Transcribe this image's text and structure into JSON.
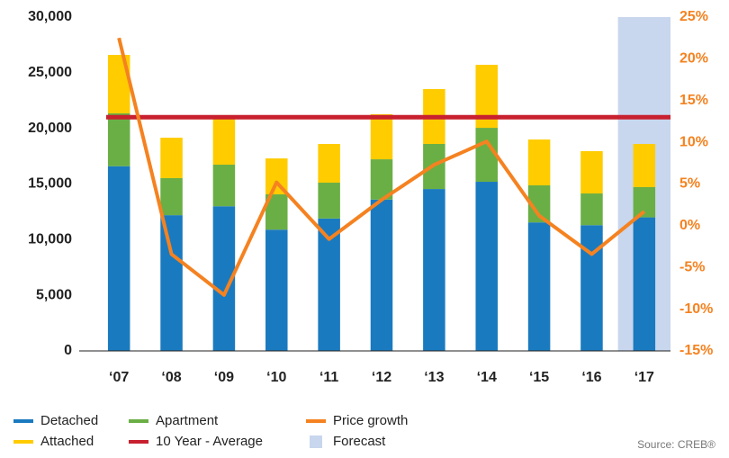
{
  "chart_data": {
    "type": "bar",
    "categories": [
      "‘07",
      "‘08",
      "‘09",
      "‘10",
      "‘11",
      "‘12",
      "‘13",
      "‘14",
      "‘15",
      "‘16",
      "‘17"
    ],
    "series": [
      {
        "name": "Detached",
        "color": "#1a7abf",
        "stack": true,
        "values": [
          16600,
          12200,
          13000,
          10900,
          11900,
          13600,
          14550,
          15200,
          11550,
          11300,
          12000
        ]
      },
      {
        "name": "Apartment",
        "color": "#6aaf45",
        "stack": true,
        "values": [
          4750,
          3330,
          3740,
          3170,
          3220,
          3620,
          4050,
          4850,
          3330,
          2850,
          2720
        ]
      },
      {
        "name": "Attached",
        "color": "#ffcc00",
        "stack": true,
        "values": [
          5250,
          3630,
          4120,
          3230,
          3480,
          4050,
          4930,
          5660,
          4120,
          3800,
          3880
        ]
      },
      {
        "name": "Price growth",
        "color": "#f58220",
        "type": "line",
        "axis": "y2",
        "values": [
          22.5,
          -3.4,
          -8.3,
          5.2,
          -1.6,
          3.1,
          7.3,
          10.1,
          1.2,
          -3.4,
          1.7
        ]
      }
    ],
    "average": {
      "name": "10 Year - Average",
      "color": "#c8202f",
      "value": 21000
    },
    "forecast": {
      "name": "Forecast",
      "color": "#c8d6ee",
      "categories": [
        "‘17"
      ]
    },
    "ylim": [
      0,
      30000
    ],
    "yticks": [
      0,
      {
        "value": 5000,
        "label": "5,000"
      },
      {
        "value": 10000,
        "label": "10,000"
      },
      {
        "value": 15000,
        "label": "15,000"
      },
      {
        "value": 20000,
        "label": "20,000"
      },
      {
        "value": 25000,
        "label": "25,000"
      },
      {
        "value": 30000,
        "label": "30,000"
      }
    ],
    "y2lim": [
      -15,
      25
    ],
    "y2ticks": [
      {
        "value": -15,
        "label": "-15%"
      },
      {
        "value": -10,
        "label": "-10%"
      },
      {
        "value": -5,
        "label": "-5%"
      },
      {
        "value": 0,
        "label": "0%"
      },
      {
        "value": 5,
        "label": "5%"
      },
      {
        "value": 10,
        "label": "10%"
      },
      {
        "value": 15,
        "label": "15%"
      },
      {
        "value": 20,
        "label": "20%"
      },
      {
        "value": 25,
        "label": "25%"
      }
    ],
    "y2color": "#f58220",
    "source": "Source: CREB®"
  }
}
